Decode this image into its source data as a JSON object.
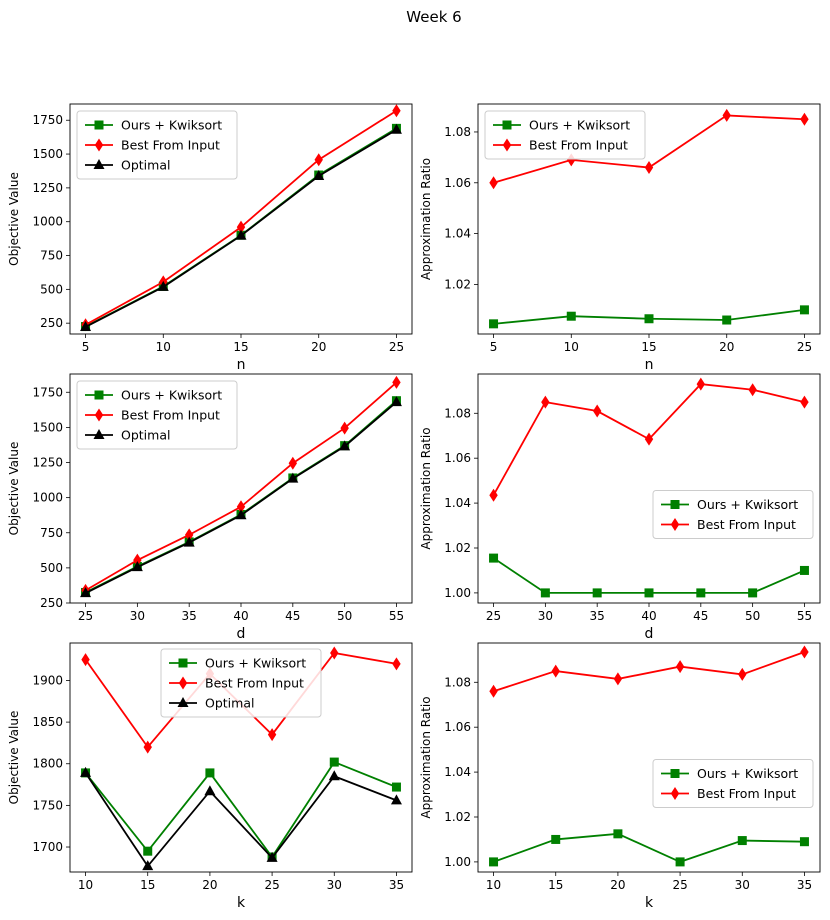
{
  "title": "Week 6",
  "colors": {
    "ours": "#008000",
    "best": "#ff0000",
    "optimal": "#000000"
  },
  "chart_data": [
    {
      "type": "line",
      "xlabel": "n",
      "ylabel": "Objective Value",
      "x": [
        5,
        10,
        15,
        20,
        25
      ],
      "xticks": [
        "5",
        "10",
        "15",
        "20",
        "25"
      ],
      "ylim": [
        170,
        1870
      ],
      "yticks": [
        250,
        500,
        750,
        1000,
        1250,
        1500,
        1750
      ],
      "ytick_labels": [
        "250",
        "500",
        "750",
        "1000",
        "1250",
        "1500",
        "1750"
      ],
      "legend": "top-left",
      "series": [
        {
          "name": "Ours + Kwiksort",
          "marker": "square",
          "color": "#008000",
          "values": [
            225,
            522,
            900,
            1345,
            1690
          ]
        },
        {
          "name": "Best From Input",
          "marker": "diamond",
          "color": "#ff0000",
          "values": [
            238,
            555,
            960,
            1458,
            1820
          ]
        },
        {
          "name": "Optimal",
          "marker": "triangle",
          "color": "#000000",
          "values": [
            222,
            518,
            897,
            1338,
            1680
          ]
        }
      ]
    },
    {
      "type": "line",
      "xlabel": "n",
      "ylabel": "Approximation Ratio",
      "x": [
        5,
        10,
        15,
        20,
        25
      ],
      "xticks": [
        "5",
        "10",
        "15",
        "20",
        "25"
      ],
      "ylim": [
        1.0005,
        1.091
      ],
      "yticks": [
        1.02,
        1.04,
        1.06,
        1.08
      ],
      "ytick_labels": [
        "1.02",
        "1.04",
        "1.06",
        "1.08"
      ],
      "legend": "top-left",
      "series": [
        {
          "name": "Ours + Kwiksort",
          "marker": "square",
          "color": "#008000",
          "values": [
            1.0045,
            1.0075,
            1.0065,
            1.006,
            1.01
          ]
        },
        {
          "name": "Best From Input",
          "marker": "diamond",
          "color": "#ff0000",
          "values": [
            1.06,
            1.069,
            1.066,
            1.0865,
            1.085
          ]
        }
      ]
    },
    {
      "type": "line",
      "xlabel": "d",
      "ylabel": "Objective Value",
      "x": [
        25,
        30,
        35,
        40,
        45,
        50,
        55
      ],
      "xticks": [
        "25",
        "30",
        "35",
        "40",
        "45",
        "50",
        "55"
      ],
      "ylim": [
        250,
        1880
      ],
      "yticks": [
        250,
        500,
        750,
        1000,
        1250,
        1500,
        1750
      ],
      "ytick_labels": [
        "250",
        "500",
        "750",
        "1000",
        "1250",
        "1500",
        "1750"
      ],
      "legend": "top-left",
      "series": [
        {
          "name": "Ours + Kwiksort",
          "marker": "square",
          "color": "#008000",
          "values": [
            325,
            510,
            685,
            880,
            1140,
            1370,
            1690
          ]
        },
        {
          "name": "Best From Input",
          "marker": "diamond",
          "color": "#ff0000",
          "values": [
            340,
            555,
            735,
            935,
            1245,
            1495,
            1820
          ]
        },
        {
          "name": "Optimal",
          "marker": "triangle",
          "color": "#000000",
          "values": [
            320,
            505,
            680,
            875,
            1135,
            1365,
            1680
          ]
        }
      ]
    },
    {
      "type": "line",
      "xlabel": "d",
      "ylabel": "Approximation Ratio",
      "x": [
        25,
        30,
        35,
        40,
        45,
        50,
        55
      ],
      "xticks": [
        "25",
        "30",
        "35",
        "40",
        "45",
        "50",
        "55"
      ],
      "ylim": [
        0.9955,
        1.0975
      ],
      "yticks": [
        1.0,
        1.02,
        1.04,
        1.06,
        1.08
      ],
      "ytick_labels": [
        "1.00",
        "1.02",
        "1.04",
        "1.06",
        "1.08"
      ],
      "legend": "center-right",
      "series": [
        {
          "name": "Ours + Kwiksort",
          "marker": "square",
          "color": "#008000",
          "values": [
            1.0155,
            1.0,
            1.0,
            1.0,
            1.0,
            1.0,
            1.01
          ]
        },
        {
          "name": "Best From Input",
          "marker": "diamond",
          "color": "#ff0000",
          "values": [
            1.0435,
            1.085,
            1.081,
            1.0685,
            1.093,
            1.0905,
            1.085
          ]
        }
      ]
    },
    {
      "type": "line",
      "xlabel": "k",
      "ylabel": "Objective Value",
      "x": [
        10,
        15,
        20,
        25,
        30,
        35
      ],
      "xticks": [
        "10",
        "15",
        "20",
        "25",
        "30",
        "35"
      ],
      "ylim": [
        1670,
        1945
      ],
      "yticks": [
        1700,
        1750,
        1800,
        1850,
        1900
      ],
      "ytick_labels": [
        "1700",
        "1750",
        "1800",
        "1850",
        "1900"
      ],
      "legend": "top-center",
      "series": [
        {
          "name": "Ours + Kwiksort",
          "marker": "square",
          "color": "#008000",
          "values": [
            1789,
            1695,
            1789,
            1688,
            1802,
            1772
          ]
        },
        {
          "name": "Best From Input",
          "marker": "diamond",
          "color": "#ff0000",
          "values": [
            1925,
            1820,
            1908,
            1835,
            1933,
            1920
          ]
        },
        {
          "name": "Optimal",
          "marker": "triangle",
          "color": "#000000",
          "values": [
            1789,
            1677,
            1767,
            1687,
            1785,
            1756
          ]
        }
      ]
    },
    {
      "type": "line",
      "xlabel": "k",
      "ylabel": "Approximation Ratio",
      "x": [
        10,
        15,
        20,
        25,
        30,
        35
      ],
      "xticks": [
        "10",
        "15",
        "20",
        "25",
        "30",
        "35"
      ],
      "ylim": [
        0.9955,
        1.0975
      ],
      "yticks": [
        1.0,
        1.02,
        1.04,
        1.06,
        1.08
      ],
      "ytick_labels": [
        "1.00",
        "1.02",
        "1.04",
        "1.06",
        "1.08"
      ],
      "legend": "center-right",
      "series": [
        {
          "name": "Ours + Kwiksort",
          "marker": "square",
          "color": "#008000",
          "values": [
            1.0,
            1.01,
            1.0125,
            1.0,
            1.0095,
            1.009
          ]
        },
        {
          "name": "Best From Input",
          "marker": "diamond",
          "color": "#ff0000",
          "values": [
            1.076,
            1.085,
            1.0815,
            1.087,
            1.0835,
            1.0935
          ]
        }
      ]
    }
  ]
}
